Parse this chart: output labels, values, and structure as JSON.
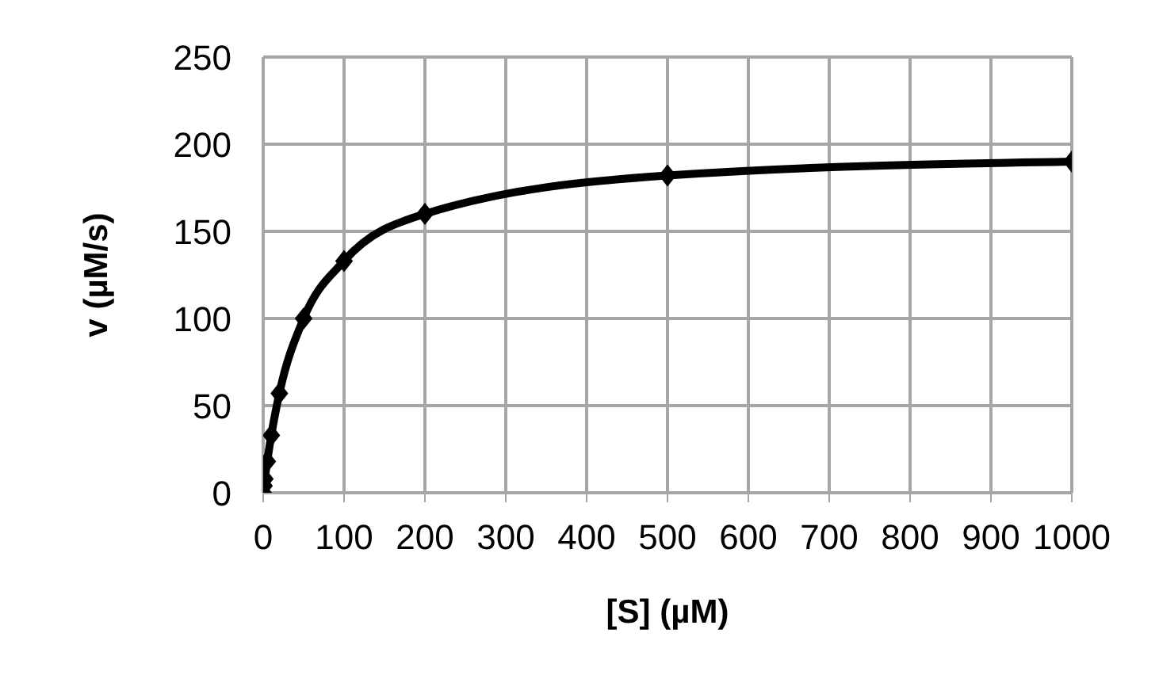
{
  "chart_data": {
    "type": "line",
    "xlabel": "[S] (µM)",
    "ylabel": "v (µM/s)",
    "x": [
      0,
      1,
      2,
      5,
      10,
      20,
      50,
      100,
      200,
      500,
      1000
    ],
    "series": [
      {
        "color": "#000000",
        "values": [
          0,
          4,
          8,
          18,
          33,
          57,
          100,
          133,
          160,
          182,
          190
        ]
      }
    ],
    "xlim": [
      0,
      1000
    ],
    "xticks": [
      0,
      100,
      200,
      300,
      400,
      500,
      600,
      700,
      800,
      900,
      1000
    ],
    "ylim": [
      0,
      250
    ],
    "yticks": [
      0,
      50,
      100,
      150,
      200,
      250
    ],
    "grid": true,
    "legend": false,
    "marker": "diamond",
    "line_style": "solid"
  }
}
